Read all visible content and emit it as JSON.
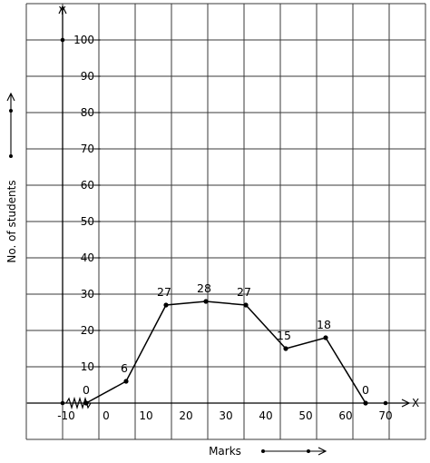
{
  "chart_data": {
    "type": "line",
    "x": [
      -5,
      5,
      15,
      25,
      35,
      45,
      55,
      65
    ],
    "series": [
      {
        "values": [
          0,
          6,
          27,
          28,
          27,
          15,
          18,
          0
        ]
      }
    ],
    "data_labels": [
      "0",
      "6",
      "27",
      "28",
      "27",
      "15",
      "18",
      "0"
    ],
    "x_ticks": [
      "-10",
      "0",
      "10",
      "20",
      "30",
      "40",
      "50",
      "60",
      "70"
    ],
    "y_ticks": [
      "10",
      "20",
      "30",
      "40",
      "50",
      "60",
      "70",
      "80",
      "90",
      "100"
    ],
    "xlabel": "Marks",
    "ylabel": "No. of students",
    "x_axis_letter": "X",
    "y_axis_letter": "Y",
    "xlim": [
      -20,
      80
    ],
    "ylim": [
      -10,
      110
    ],
    "grid": true,
    "x_axis_break": true
  }
}
